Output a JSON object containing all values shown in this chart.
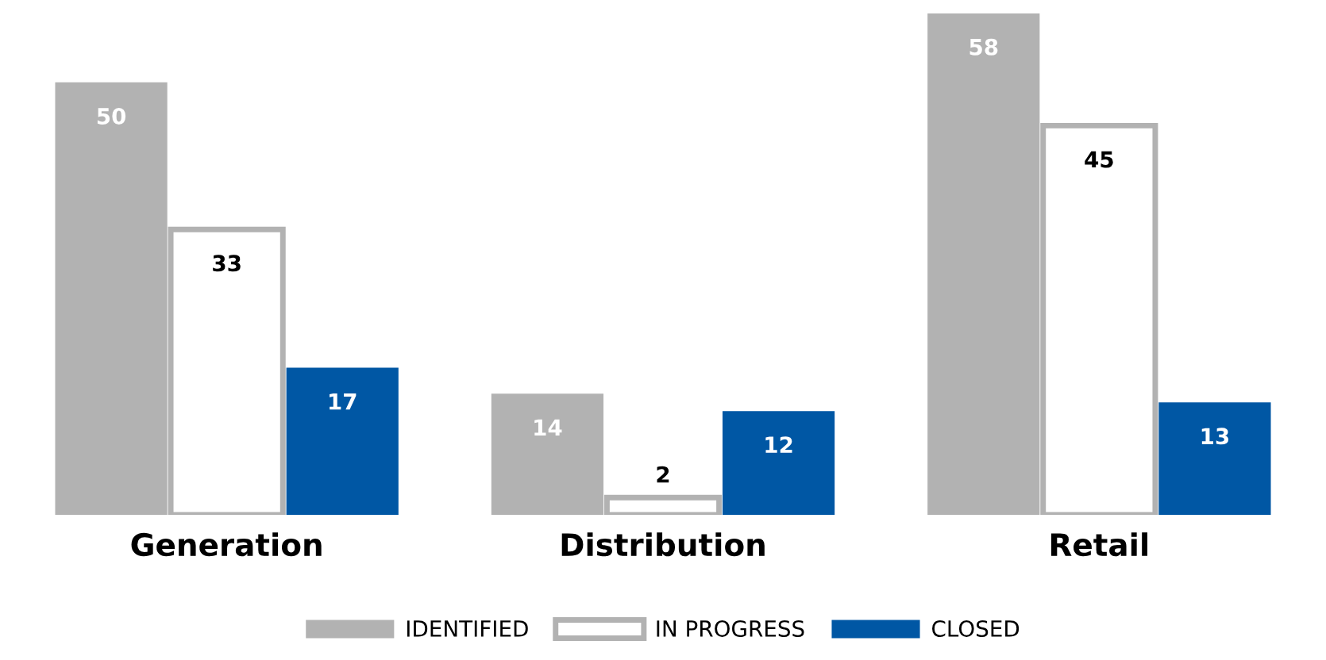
{
  "chart_data": {
    "type": "bar",
    "categories": [
      "Generation",
      "Distribution",
      "Retail"
    ],
    "series": [
      {
        "name": "IDENTIFIED",
        "color": "#b2b2b2",
        "values": [
          50,
          14,
          58
        ]
      },
      {
        "name": "IN PROGRESS",
        "color": "#ffffff",
        "values": [
          33,
          2,
          45
        ]
      },
      {
        "name": "CLOSED",
        "color": "#0057a4",
        "values": [
          17,
          12,
          13
        ]
      }
    ],
    "data_labels": true,
    "legend": "bottom",
    "grid": false
  }
}
